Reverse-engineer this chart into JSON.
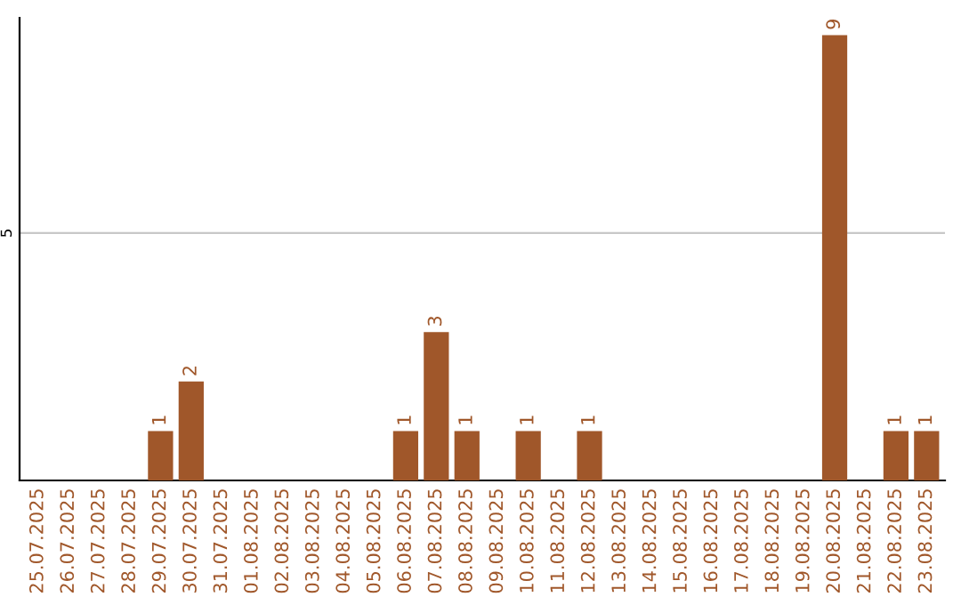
{
  "chart_data": {
    "type": "bar",
    "categories": [
      "25.07.2025",
      "26.07.2025",
      "27.07.2025",
      "28.07.2025",
      "29.07.2025",
      "30.07.2025",
      "31.07.2025",
      "01.08.2025",
      "02.08.2025",
      "03.08.2025",
      "04.08.2025",
      "05.08.2025",
      "06.08.2025",
      "07.08.2025",
      "08.08.2025",
      "09.08.2025",
      "10.08.2025",
      "11.08.2025",
      "12.08.2025",
      "13.08.2025",
      "14.08.2025",
      "15.08.2025",
      "16.08.2025",
      "17.08.2025",
      "18.08.2025",
      "19.08.2025",
      "20.08.2025",
      "21.08.2025",
      "22.08.2025",
      "23.08.2025"
    ],
    "values": [
      0,
      0,
      0,
      0,
      1,
      2,
      0,
      0,
      0,
      0,
      0,
      0,
      1,
      3,
      1,
      0,
      1,
      0,
      1,
      0,
      0,
      0,
      0,
      0,
      0,
      0,
      9,
      0,
      1,
      1
    ],
    "value_labels": [
      null,
      null,
      null,
      null,
      "1",
      "2",
      null,
      null,
      null,
      null,
      null,
      null,
      "1",
      "3",
      "1",
      null,
      "1",
      null,
      "1",
      null,
      null,
      null,
      null,
      null,
      null,
      null,
      "9",
      null,
      "1",
      "1"
    ],
    "color": "#a0572a",
    "ylim": [
      0,
      9.35
    ],
    "yticks": [
      5
    ],
    "grid": "y"
  }
}
